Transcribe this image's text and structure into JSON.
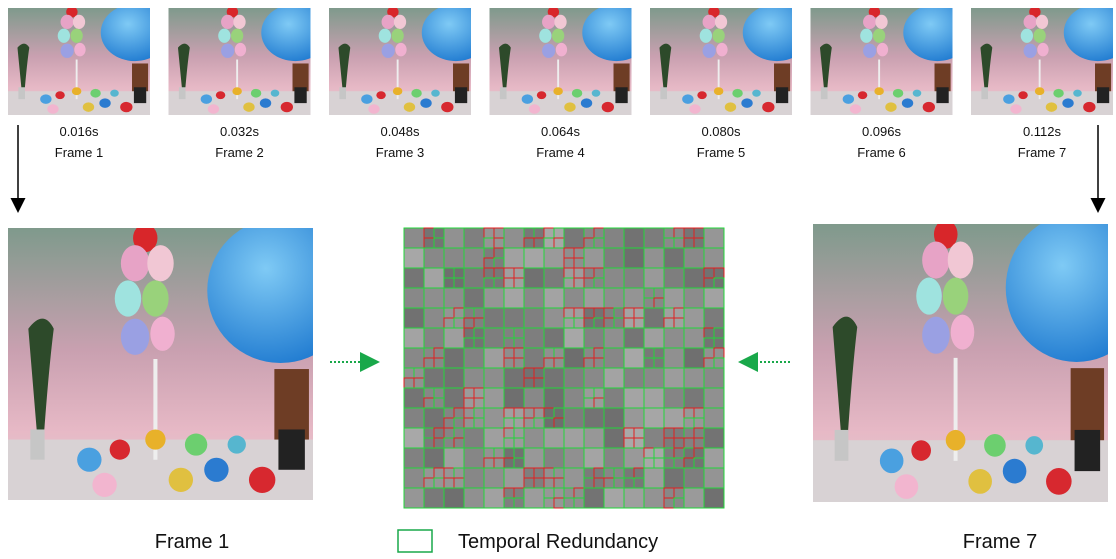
{
  "frames": [
    {
      "time": "0.016s",
      "label": "Frame 1"
    },
    {
      "time": "0.032s",
      "label": "Frame 2"
    },
    {
      "time": "0.048s",
      "label": "Frame 3"
    },
    {
      "time": "0.064s",
      "label": "Frame 4"
    },
    {
      "time": "0.080s",
      "label": "Frame 5"
    },
    {
      "time": "0.096s",
      "label": "Frame 6"
    },
    {
      "time": "0.112s",
      "label": "Frame 7"
    }
  ],
  "bottom": {
    "left_label": "Frame 1",
    "right_label": "Frame 7"
  },
  "legend": {
    "label": "Temporal Redundancy"
  }
}
